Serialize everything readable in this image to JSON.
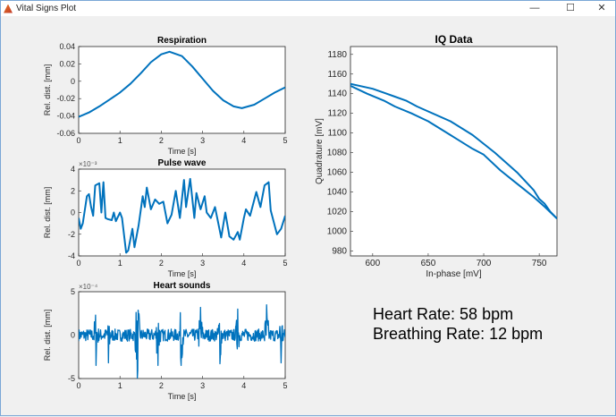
{
  "window": {
    "title": "Vital Signs Plot",
    "minimize": "—",
    "maximize": "☐",
    "close": "✕"
  },
  "info": {
    "heart_rate": "Heart Rate: 58 bpm",
    "breathing_rate": "Breathing Rate: 12 bpm"
  },
  "colors": {
    "line": "#0072bd",
    "axes": "#262626",
    "bg": "#f0f0f0"
  },
  "chart_data": [
    {
      "type": "line",
      "title": "Respiration",
      "xlabel": "Time [s]",
      "ylabel": "Rel. dist. [mm]",
      "xlim": [
        0,
        5
      ],
      "ylim": [
        -0.06,
        0.04
      ],
      "xticks": [
        "0",
        "1",
        "2",
        "3",
        "4",
        "5"
      ],
      "yticks": [
        "-0.06",
        "-0.04",
        "-0.02",
        "0",
        "0.02",
        "0.04"
      ],
      "exponent": "",
      "x": [
        0,
        0.25,
        0.5,
        0.75,
        1,
        1.25,
        1.5,
        1.75,
        2,
        2.2,
        2.5,
        2.75,
        3,
        3.25,
        3.5,
        3.75,
        3.95,
        4.25,
        4.5,
        4.75,
        5
      ],
      "y": [
        -0.041,
        -0.036,
        -0.029,
        -0.021,
        -0.013,
        -0.003,
        0.009,
        0.022,
        0.031,
        0.034,
        0.029,
        0.017,
        0.003,
        -0.011,
        -0.022,
        -0.029,
        -0.031,
        -0.027,
        -0.02,
        -0.013,
        -0.007
      ]
    },
    {
      "type": "line",
      "title": "Pulse wave",
      "xlabel": "Time [s]",
      "ylabel": "Rel. dist. [mm]",
      "xlim": [
        0,
        5
      ],
      "ylim": [
        -4,
        4
      ],
      "xticks": [
        "0",
        "1",
        "2",
        "3",
        "4",
        "5"
      ],
      "yticks": [
        "-4",
        "-2",
        "0",
        "2",
        "4"
      ],
      "exponent": "×10⁻³",
      "x": [
        0,
        0.05,
        0.1,
        0.2,
        0.25,
        0.3,
        0.35,
        0.4,
        0.5,
        0.55,
        0.6,
        0.65,
        0.7,
        0.8,
        0.85,
        0.9,
        1.0,
        1.05,
        1.15,
        1.2,
        1.3,
        1.35,
        1.45,
        1.55,
        1.6,
        1.65,
        1.75,
        1.85,
        1.95,
        2.05,
        2.15,
        2.25,
        2.35,
        2.45,
        2.55,
        2.6,
        2.7,
        2.8,
        2.85,
        2.95,
        3.05,
        3.1,
        3.2,
        3.3,
        3.45,
        3.55,
        3.65,
        3.75,
        3.85,
        3.9,
        4.0,
        4.05,
        4.15,
        4.3,
        4.4,
        4.5,
        4.6,
        4.65,
        4.8,
        4.9,
        5.0
      ],
      "y": [
        -0.5,
        -1.5,
        -1,
        1.5,
        1.7,
        0.5,
        -0.3,
        2.5,
        2.7,
        0,
        2.8,
        -0.5,
        -0.6,
        -0.7,
        0,
        -0.8,
        0,
        -0.5,
        -3.7,
        -3.5,
        -1.5,
        -3.2,
        -1.2,
        1.5,
        0.5,
        2.3,
        0.3,
        1.2,
        0.8,
        1.0,
        -1.0,
        -0.2,
        2.0,
        -0.5,
        3.0,
        0.5,
        3.1,
        -0.5,
        1.8,
        0.3,
        1.5,
        0,
        -0.5,
        0.5,
        -2.3,
        0,
        -2.2,
        -2.5,
        -1.8,
        -2.5,
        -0.5,
        0.3,
        -0.3,
        1.9,
        0.5,
        2.5,
        2.8,
        0.2,
        -2.0,
        -1.5,
        -0.3
      ]
    },
    {
      "type": "line",
      "title": "Heart sounds",
      "xlabel": "Time [s]",
      "ylabel": "Rel. dist. [mm]",
      "xlim": [
        0,
        5
      ],
      "ylim": [
        -5,
        5
      ],
      "xticks": [
        "0",
        "1",
        "2",
        "3",
        "4",
        "5"
      ],
      "yticks": [
        "-5",
        "0",
        "5"
      ],
      "exponent": "×10⁻⁴",
      "peak_times": [
        0.42,
        0.72,
        1.42,
        1.92,
        2.48,
        2.95,
        3.42,
        3.85,
        4.55,
        4.9
      ],
      "peak_amplitudes": [
        3.5,
        3.2,
        5,
        3.5,
        3.5,
        3.2,
        3.3,
        3,
        3.5,
        3.2
      ],
      "noise_amplitude": 1.0
    },
    {
      "type": "line",
      "title": "IQ Data",
      "xlabel": "In-phase [mV]",
      "ylabel": "Quadrature [mV]",
      "xlim": [
        580,
        766
      ],
      "ylim": [
        975,
        1188
      ],
      "xticks": [
        "600",
        "650",
        "700",
        "750"
      ],
      "yticks": [
        "980",
        "1000",
        "1020",
        "1040",
        "1060",
        "1080",
        "1100",
        "1120",
        "1140",
        "1160",
        "1180"
      ],
      "exponent": "",
      "series": [
        {
          "name": "upper",
          "x": [
            580,
            600,
            610,
            620,
            630,
            640,
            650,
            670,
            690,
            710,
            730,
            745,
            750,
            755,
            760,
            766
          ],
          "y": [
            1150,
            1145,
            1141,
            1137,
            1133,
            1127,
            1122,
            1112,
            1098,
            1080,
            1060,
            1042,
            1033,
            1028,
            1020,
            1013
          ]
        },
        {
          "name": "lower",
          "x": [
            580,
            595,
            610,
            620,
            635,
            650,
            670,
            690,
            700,
            715,
            725,
            735,
            745,
            755,
            766
          ],
          "y": [
            1148,
            1140,
            1133,
            1127,
            1120,
            1112,
            1098,
            1084,
            1078,
            1062,
            1053,
            1044,
            1035,
            1025,
            1013
          ]
        }
      ]
    }
  ]
}
